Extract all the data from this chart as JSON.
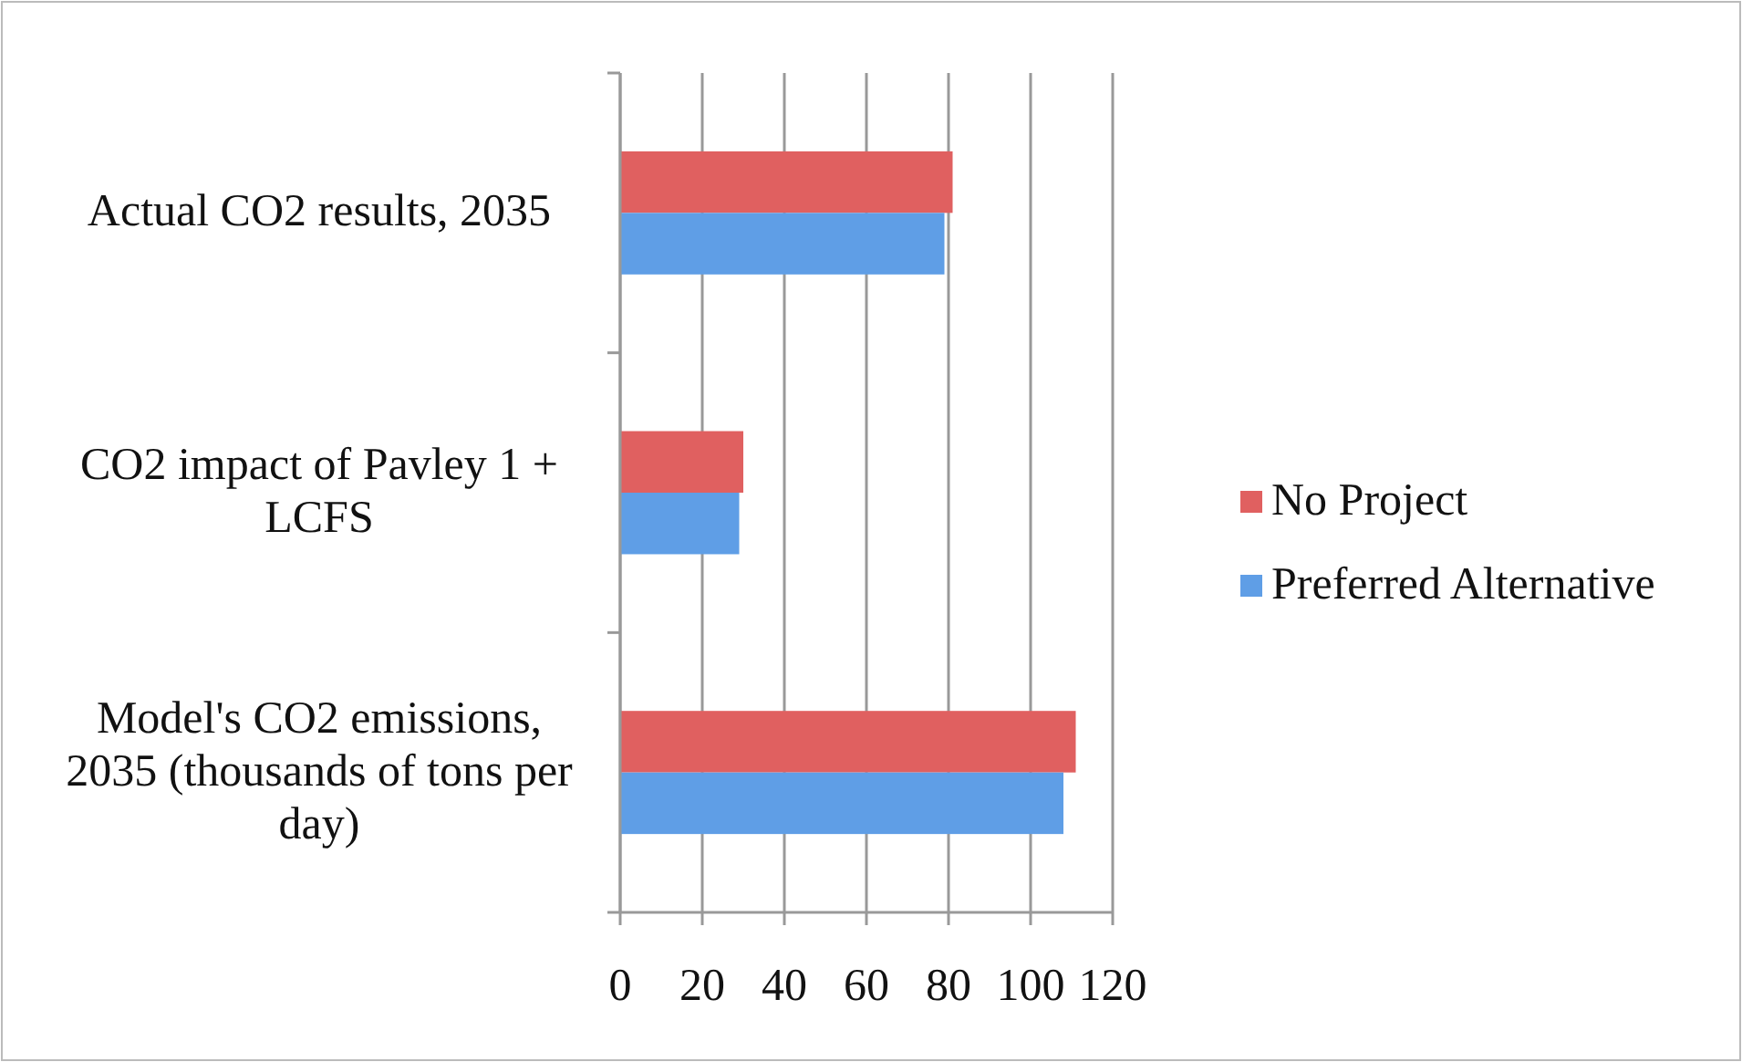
{
  "chart_data": {
    "type": "bar",
    "orientation": "horizontal",
    "categories": [
      "Actual CO2 results, 2035",
      "CO2 impact of Pavley 1 + LCFS",
      "Model's CO2 emissions, 2035 (thousands of tons per day)"
    ],
    "series": [
      {
        "name": "No Project",
        "color": "#e06060",
        "values": [
          81,
          30,
          111
        ]
      },
      {
        "name": "Preferred Alternative",
        "color": "#5f9ee6",
        "values": [
          79,
          29,
          108
        ]
      }
    ],
    "xlim": [
      0,
      120
    ],
    "xticks": [
      0,
      20,
      40,
      60,
      80,
      100,
      120
    ],
    "grid": "x",
    "legend": "right"
  }
}
